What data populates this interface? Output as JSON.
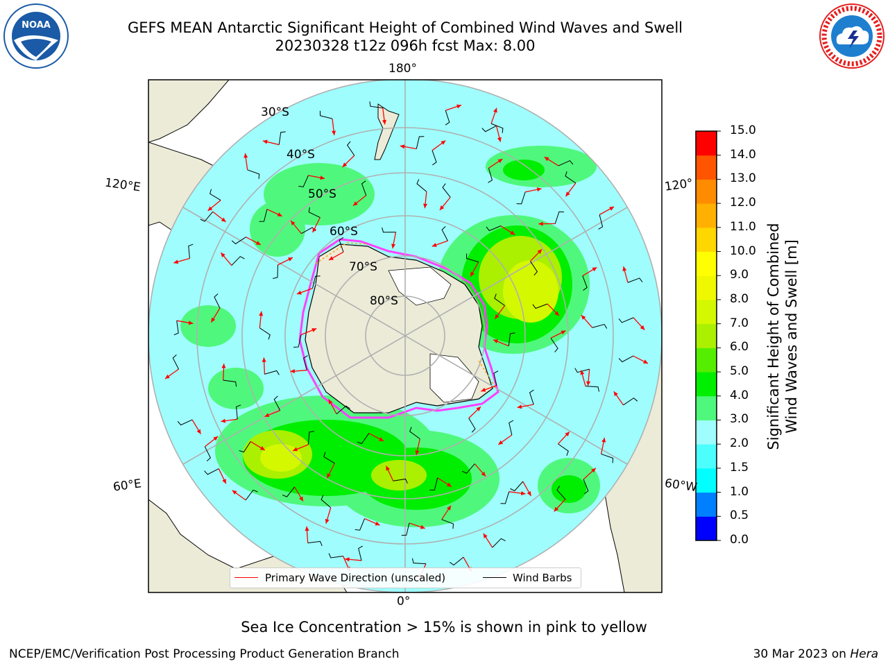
{
  "title": {
    "line1": "GEFS MEAN Antarctic Significant Height of Combined Wind Waves and Swell",
    "line2": "20230328 t12z 096h fcst   Max: 8.00"
  },
  "logos": {
    "left": {
      "text": "NOAA",
      "ring_text": "NATIONAL OCEANIC AND ATMOSPHERIC ADMINISTRATION",
      "color": "#1a5aa6"
    },
    "right": {
      "text": "NATIONAL WEATHER SERVICE",
      "color": "#e41e1e"
    }
  },
  "map": {
    "projection": "south polar stereographic",
    "latitude_labels": [
      "30°S",
      "40°S",
      "50°S",
      "60°S",
      "70°S",
      "80°S"
    ],
    "longitude_labels": {
      "top": "180°",
      "bottom": "0°",
      "upper_left": "120°E",
      "lower_left": "60°E",
      "upper_right": "120°",
      "lower_right": "60°W"
    },
    "colors": {
      "land": "#ecebd8",
      "ocean_low": "#9ffdfd",
      "ice_edge": "#ff40ff",
      "grid": "#b0b0b0"
    }
  },
  "legend": {
    "items": [
      {
        "label": "Primary Wave Direction (unscaled)",
        "color": "#ff0000"
      },
      {
        "label": "Wind Barbs",
        "color": "#000000"
      }
    ]
  },
  "colorbar": {
    "label_line1": "Significant Height of Combined",
    "label_line2": "Wind Waves and Swell [m]",
    "ticks": [
      "0.0",
      "0.5",
      "1.0",
      "1.5",
      "2.0",
      "3.0",
      "4.0",
      "5.0",
      "6.0",
      "7.0",
      "8.0",
      "9.0",
      "10.0",
      "11.0",
      "12.0",
      "13.0",
      "14.0",
      "15.0"
    ],
    "colors": [
      "#0000ff",
      "#0080ff",
      "#00ffff",
      "#4cfefe",
      "#9ffdfd",
      "#4ff87c",
      "#00ee00",
      "#55ee00",
      "#aaf000",
      "#d4f800",
      "#f0f800",
      "#ffff00",
      "#ffd700",
      "#ffb000",
      "#ff8c00",
      "#ff5500",
      "#ff0000"
    ]
  },
  "caption": "Sea Ice Concentration > 15% is shown in pink to yellow",
  "credit": "NCEP/EMC/Verification Post Processing Product Generation Branch",
  "date": {
    "text": "30 Mar 2023 on ",
    "italic": "Hera"
  }
}
